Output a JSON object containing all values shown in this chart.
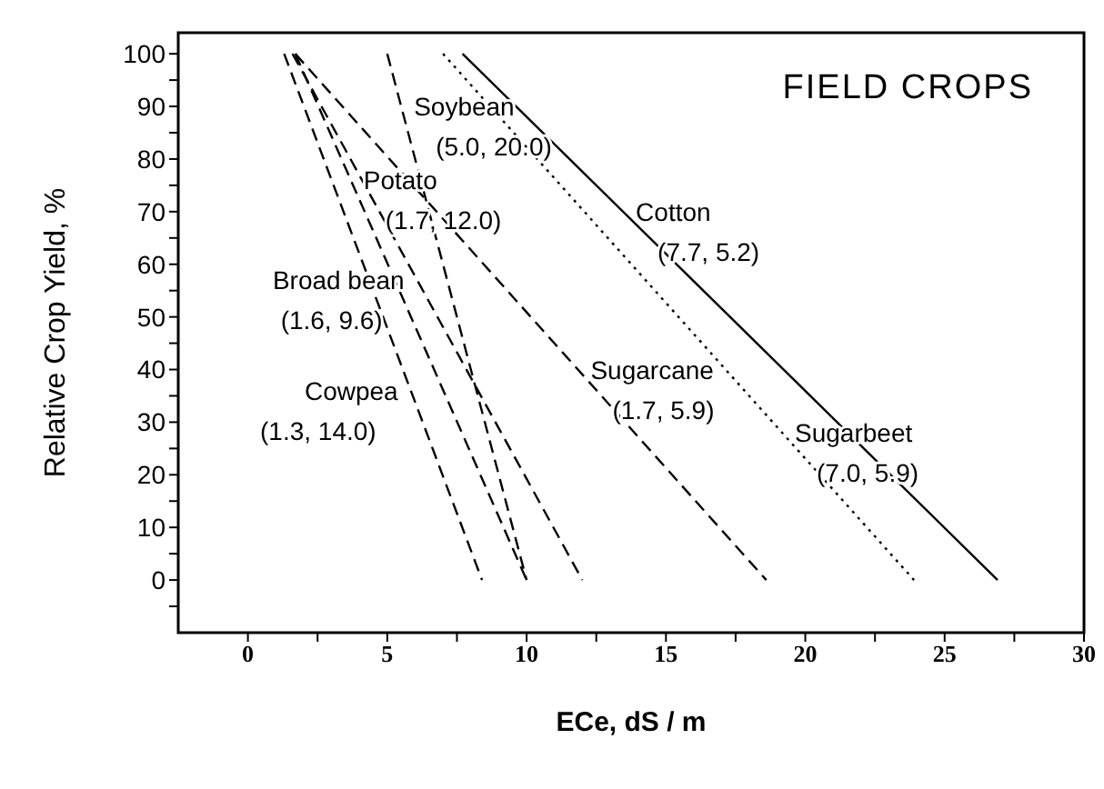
{
  "chart_data": {
    "type": "line",
    "title": "FIELD CROPS",
    "xlabel": "ECe, dS / m",
    "ylabel": "Relative Crop Yield, %",
    "xlim": [
      -2.5,
      30
    ],
    "xticks": [
      0,
      {
        "value": 2.5,
        "label": null
      },
      5,
      {
        "value": 7.5,
        "label": null
      },
      10,
      {
        "value": 12.5,
        "label": null
      },
      15,
      {
        "value": 17.5,
        "label": null
      },
      20,
      {
        "value": 22.5,
        "label": null
      },
      25,
      {
        "value": 27.5,
        "label": null
      },
      30
    ],
    "ylim": [
      -10,
      104
    ],
    "yticks": [
      {
        "value": -5,
        "label": null
      },
      0,
      {
        "value": 5,
        "label": null
      },
      10,
      {
        "value": 15,
        "label": null
      },
      20,
      {
        "value": 25,
        "label": null
      },
      30,
      {
        "value": 35,
        "label": null
      },
      40,
      {
        "value": 45,
        "label": null
      },
      50,
      {
        "value": 55,
        "label": null
      },
      60,
      {
        "value": 65,
        "label": null
      },
      70,
      {
        "value": 75,
        "label": null
      },
      80,
      {
        "value": 85,
        "label": null
      },
      90,
      {
        "value": 95,
        "label": null
      },
      100
    ],
    "grid": false,
    "legend": false,
    "marker": "none",
    "series": [
      {
        "name": "Potato",
        "color": "#000000",
        "line_style": "dashed",
        "x": [
          1.7,
          10
        ],
        "values": [
          100,
          0
        ]
      },
      {
        "name": "Cotton",
        "color": "#000000",
        "line_style": "solid",
        "x": [
          7.7,
          26.9
        ],
        "values": [
          100,
          0
        ]
      },
      {
        "name": "Broad bean",
        "color": "#000000",
        "line_style": "dashed",
        "x": [
          1.6,
          12
        ],
        "values": [
          100,
          0
        ]
      },
      {
        "name": "Cowpea",
        "color": "#000000",
        "line_style": "dashed",
        "x": [
          1.3,
          8.4
        ],
        "values": [
          100,
          0
        ]
      },
      {
        "name": "Soybean",
        "color": "#000000",
        "line_style": "dashed",
        "x": [
          5,
          10
        ],
        "values": [
          100,
          0
        ]
      },
      {
        "name": "Sugarcane",
        "color": "#000000",
        "line_style": "dashed",
        "x": [
          1.7,
          18.6
        ],
        "values": [
          100,
          0
        ]
      },
      {
        "name": "Sugarbeet",
        "color": "#000000",
        "line_style": "dotted",
        "x": [
          7,
          23.9
        ],
        "values": [
          100,
          0
        ]
      }
    ],
    "annotations": [
      "(1.7, 12.0)",
      "(7.7, 5.2)",
      "(1.6, 9.6)",
      "(1.3, 14.0)",
      "(5.0, 20.0)",
      "(1.7, 5.9)",
      "(7.0, 5.9)"
    ]
  }
}
